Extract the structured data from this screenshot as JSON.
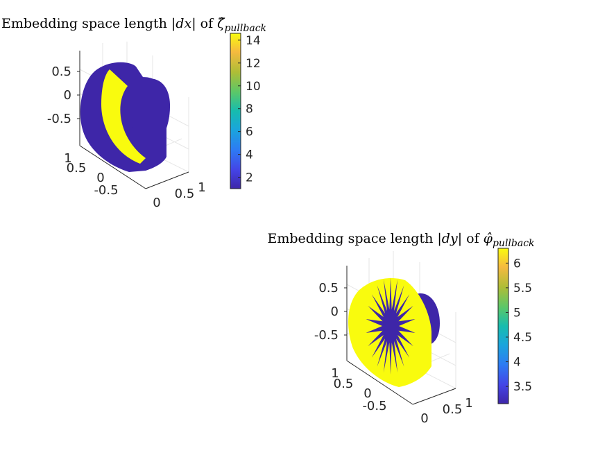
{
  "chart_data": [
    {
      "type": "surface3d",
      "title": {
        "prefix": "Embedding space length |",
        "var": "dx",
        "mid": "| of ",
        "symbol": "ζ̂",
        "subscript": "pullback"
      },
      "z_ticks": [
        "0.5",
        "0",
        "-0.5"
      ],
      "y_ticks": [
        "1",
        "0.5",
        "0",
        "-0.5"
      ],
      "x_ticks": [
        "0",
        "0.5",
        "1"
      ],
      "colorbar": {
        "ticks": [
          14,
          12,
          10,
          8,
          6,
          4,
          2
        ],
        "min": 1,
        "max": 14.6
      },
      "body_value": 1.2,
      "band_value": 14.5,
      "band_shape": "crescent"
    },
    {
      "type": "surface3d",
      "title": {
        "prefix": "Embedding space length |",
        "var": "dy",
        "mid": "| of ",
        "symbol": "φ̂",
        "subscript": "pullback"
      },
      "z_ticks": [
        "0.5",
        "0",
        "-0.5"
      ],
      "y_ticks": [
        "1",
        "0.5",
        "0",
        "-0.5"
      ],
      "x_ticks": [
        "0",
        "0.5",
        "1"
      ],
      "colorbar": {
        "ticks": [
          6,
          5.5,
          5,
          4.5,
          4,
          3.5
        ],
        "min": 3.15,
        "max": 6.3
      },
      "body_value": 6.28,
      "band_value": 3.14,
      "band_shape": "starburst"
    }
  ],
  "colors": {
    "parula_low": "#3e26a8",
    "parula_high": "#f9fb0e",
    "axis": "#262626",
    "grid": "#e6e6e6"
  }
}
